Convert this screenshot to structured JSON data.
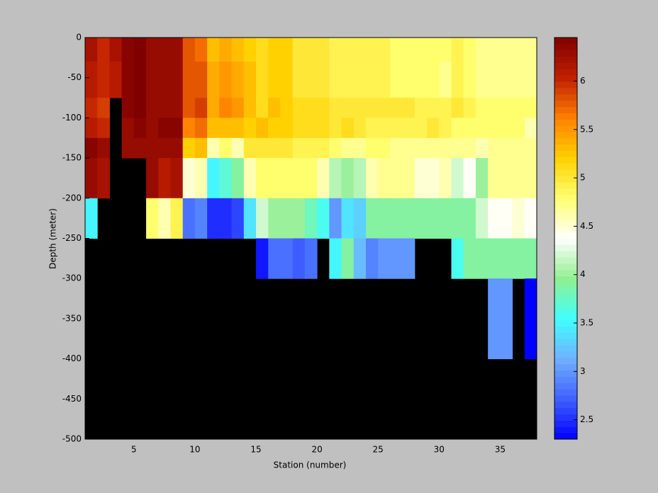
{
  "chart_data": {
    "type": "heatmap",
    "xlabel": "Station (number)",
    "ylabel": "Depth (meter)",
    "x": [
      1,
      2,
      3,
      4,
      5,
      6,
      7,
      8,
      9,
      10,
      11,
      12,
      13,
      14,
      15,
      16,
      17,
      18,
      19,
      20,
      21,
      22,
      23,
      24,
      25,
      26,
      27,
      28,
      29,
      30,
      31,
      32,
      33,
      34,
      35,
      36,
      37,
      38
    ],
    "y": [
      0,
      -30,
      -75,
      -100,
      -125,
      -150,
      -200,
      -250,
      -300,
      -400,
      -500
    ],
    "z": [
      [
        6.2,
        6.0,
        6.2,
        6.4,
        6.5,
        6.3,
        6.3,
        6.3,
        5.8,
        5.7,
        5.3,
        5.4,
        5.3,
        5.2,
        5.1,
        5.2,
        5.2,
        5.0,
        5.0,
        5.0,
        4.9,
        4.9,
        4.9,
        4.9,
        4.9,
        4.8,
        4.8,
        4.8,
        4.8,
        4.8,
        4.9,
        4.8,
        4.7,
        4.7,
        4.7,
        4.7,
        4.7
      ],
      [
        6.1,
        6.0,
        6.1,
        6.4,
        6.5,
        6.3,
        6.3,
        6.3,
        5.8,
        5.8,
        5.4,
        5.5,
        5.4,
        5.3,
        5.1,
        5.2,
        5.2,
        5.0,
        5.0,
        5.0,
        4.9,
        4.9,
        4.9,
        4.9,
        4.9,
        4.8,
        4.8,
        4.8,
        4.8,
        4.7,
        4.9,
        4.8,
        4.7,
        4.7,
        4.7,
        4.7,
        4.7
      ],
      [
        6.0,
        5.9,
        null,
        6.4,
        6.5,
        6.3,
        6.3,
        6.3,
        5.8,
        5.9,
        5.4,
        5.6,
        5.5,
        5.3,
        5.1,
        5.3,
        5.2,
        5.1,
        5.1,
        5.1,
        5.0,
        5.0,
        5.0,
        5.0,
        5.0,
        5.0,
        5.0,
        4.9,
        4.9,
        4.9,
        5.0,
        4.9,
        4.8,
        4.8,
        4.8,
        4.8,
        4.8
      ],
      [
        6.1,
        6.0,
        null,
        6.3,
        6.4,
        6.3,
        6.4,
        6.4,
        5.6,
        5.7,
        5.3,
        5.3,
        5.3,
        5.2,
        5.3,
        5.2,
        5.2,
        5.1,
        5.1,
        5.1,
        5.0,
        5.1,
        5.0,
        4.9,
        4.9,
        4.9,
        4.9,
        4.9,
        5.0,
        4.9,
        4.8,
        4.8,
        4.8,
        4.8,
        4.8,
        4.8,
        4.6
      ],
      [
        6.4,
        6.3,
        null,
        6.3,
        6.3,
        6.3,
        6.3,
        6.3,
        5.2,
        5.3,
        4.6,
        4.8,
        4.6,
        5.0,
        5.0,
        5.0,
        5.0,
        4.9,
        4.9,
        4.9,
        4.8,
        4.7,
        4.7,
        4.8,
        4.8,
        4.7,
        4.7,
        4.7,
        4.7,
        4.7,
        4.7,
        4.7,
        4.6,
        4.7,
        4.7,
        4.7,
        4.7
      ],
      [
        6.3,
        6.2,
        null,
        null,
        null,
        6.3,
        6.1,
        6.2,
        4.5,
        4.6,
        3.5,
        3.7,
        3.9,
        4.6,
        4.8,
        4.8,
        4.8,
        4.8,
        4.8,
        4.6,
        4.1,
        4.0,
        4.1,
        4.6,
        4.7,
        4.7,
        4.7,
        4.5,
        4.5,
        4.6,
        4.2,
        4.4,
        4.0,
        4.7,
        4.7,
        4.7,
        4.7
      ],
      [
        3.5,
        null,
        null,
        null,
        null,
        4.8,
        4.6,
        4.9,
        2.8,
        2.9,
        2.5,
        2.5,
        2.6,
        3.4,
        4.2,
        4.0,
        4.0,
        4.0,
        3.8,
        3.6,
        3.0,
        3.4,
        3.3,
        3.9,
        3.9,
        3.9,
        3.9,
        3.9,
        3.9,
        3.9,
        3.9,
        3.9,
        4.2,
        4.4,
        4.4,
        4.5,
        4.4
      ],
      [
        null,
        null,
        null,
        null,
        null,
        null,
        null,
        null,
        null,
        null,
        null,
        null,
        null,
        null,
        2.4,
        2.8,
        2.8,
        2.7,
        2.8,
        null,
        3.5,
        3.9,
        3.2,
        2.9,
        3.0,
        3.0,
        3.0,
        null,
        null,
        null,
        3.6,
        3.9,
        3.9,
        3.9,
        3.9,
        3.9,
        3.9
      ],
      [
        null,
        null,
        null,
        null,
        null,
        null,
        null,
        null,
        null,
        null,
        null,
        null,
        null,
        null,
        null,
        null,
        null,
        null,
        null,
        null,
        null,
        null,
        null,
        null,
        null,
        null,
        null,
        null,
        null,
        null,
        null,
        null,
        null,
        3.0,
        3.0,
        null,
        2.3
      ],
      [
        null,
        null,
        null,
        null,
        null,
        null,
        null,
        null,
        null,
        null,
        null,
        null,
        null,
        null,
        null,
        null,
        null,
        null,
        null,
        null,
        null,
        null,
        null,
        null,
        null,
        null,
        null,
        null,
        null,
        null,
        null,
        null,
        null,
        null,
        null,
        null,
        null
      ]
    ],
    "xlim": [
      1,
      38
    ],
    "ylim": [
      -500,
      0
    ],
    "xticks": [
      5,
      10,
      15,
      20,
      25,
      30,
      35
    ],
    "yticks": [
      0,
      -50,
      -100,
      -150,
      -200,
      -250,
      -300,
      -350,
      -400,
      -450,
      -500
    ],
    "clim": [
      2.3,
      6.45
    ],
    "cticks": [
      2.5,
      3,
      3.5,
      4,
      4.5,
      5,
      5.5,
      6
    ],
    "colormap": [
      "#0000ff",
      "#4060ff",
      "#70b0ff",
      "#40ffff",
      "#90f090",
      "#ffffff",
      "#ffff70",
      "#ffd000",
      "#ff8000",
      "#c02000",
      "#800000"
    ],
    "missing_color": "#000000"
  }
}
